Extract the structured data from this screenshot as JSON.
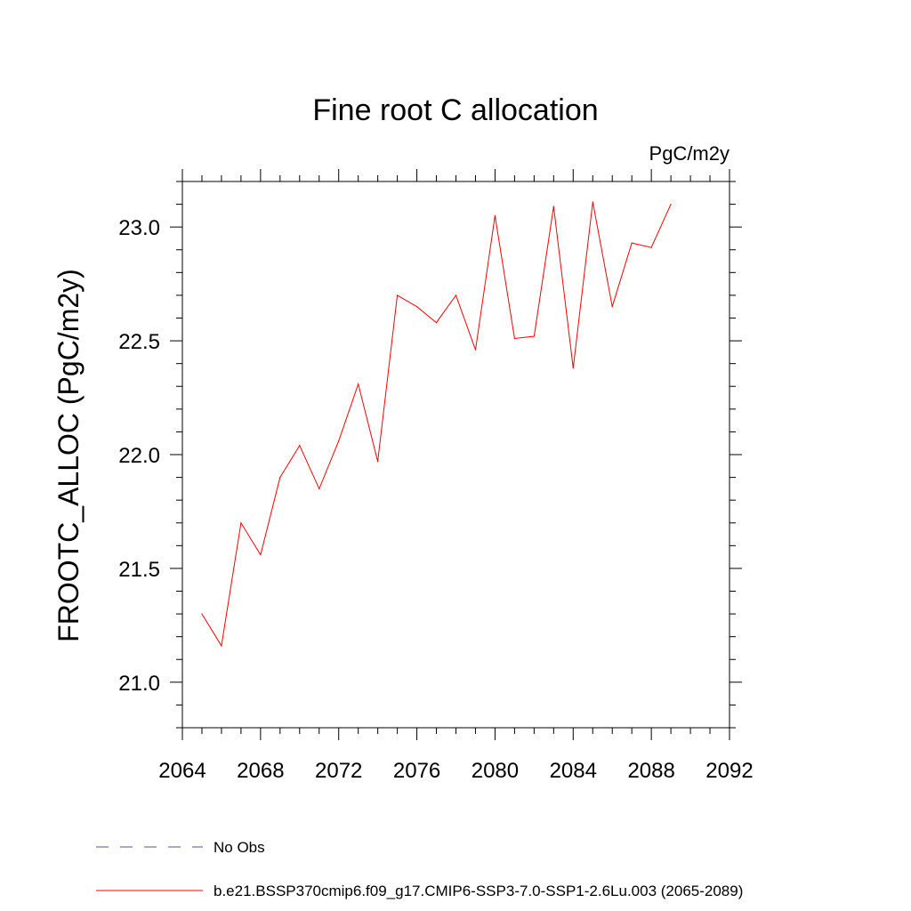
{
  "chart_data": {
    "type": "line",
    "title": "Fine root C allocation",
    "units": "PgC/m2y",
    "ylabel": "FROOTC_ALLOC  (PgC/m2y)",
    "xlabel": "",
    "xlim": [
      2064,
      2092
    ],
    "ylim": [
      20.8,
      23.2
    ],
    "x_ticks": [
      "2064",
      "2068",
      "2072",
      "2076",
      "2080",
      "2084",
      "2088",
      "2092"
    ],
    "x_tick_values": [
      2064,
      2068,
      2072,
      2076,
      2080,
      2084,
      2088,
      2092
    ],
    "y_ticks": [
      "21.0",
      "21.5",
      "22.0",
      "22.5",
      "23.0"
    ],
    "y_tick_values": [
      21.0,
      21.5,
      22.0,
      22.5,
      23.0
    ],
    "series": [
      {
        "name": "b.e21.BSSP370cmip6.f09_g17.CMIP6-SSP3-7.0-SSP1-2.6Lu.003 (2065-2089)",
        "color": "#ff0000",
        "style": "solid",
        "x": [
          2065,
          2066,
          2067,
          2068,
          2069,
          2070,
          2071,
          2072,
          2073,
          2074,
          2075,
          2076,
          2077,
          2078,
          2079,
          2080,
          2081,
          2082,
          2083,
          2084,
          2085,
          2086,
          2087,
          2088,
          2089
        ],
        "y": [
          21.3,
          21.16,
          21.7,
          21.56,
          21.9,
          22.04,
          21.85,
          22.06,
          22.31,
          21.97,
          22.7,
          22.65,
          22.58,
          22.7,
          22.46,
          23.05,
          22.51,
          22.52,
          23.09,
          22.38,
          23.11,
          22.65,
          22.93,
          22.91,
          23.1
        ]
      }
    ],
    "legend": [
      {
        "label": "No Obs",
        "color": "#5a4fb0",
        "style": "dashed"
      },
      {
        "label": "b.e21.BSSP370cmip6.f09_g17.CMIP6-SSP3-7.0-SSP1-2.6Lu.003 (2065-2089)",
        "color": "#ff0000",
        "style": "solid"
      }
    ],
    "legend_position": "bottom-left"
  }
}
